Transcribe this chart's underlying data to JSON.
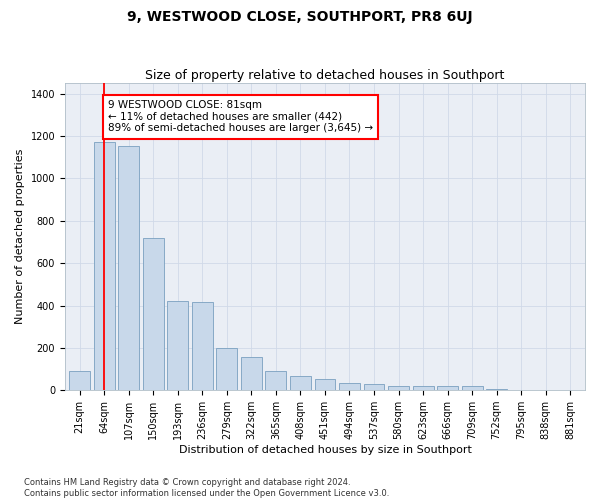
{
  "title": "9, WESTWOOD CLOSE, SOUTHPORT, PR8 6UJ",
  "subtitle": "Size of property relative to detached houses in Southport",
  "xlabel": "Distribution of detached houses by size in Southport",
  "ylabel": "Number of detached properties",
  "categories": [
    "21sqm",
    "64sqm",
    "107sqm",
    "150sqm",
    "193sqm",
    "236sqm",
    "279sqm",
    "322sqm",
    "365sqm",
    "408sqm",
    "451sqm",
    "494sqm",
    "537sqm",
    "580sqm",
    "623sqm",
    "666sqm",
    "709sqm",
    "752sqm",
    "795sqm",
    "838sqm",
    "881sqm"
  ],
  "values": [
    90,
    1170,
    1155,
    720,
    420,
    415,
    200,
    155,
    90,
    65,
    55,
    35,
    28,
    22,
    18,
    18,
    18,
    5,
    0,
    0,
    0
  ],
  "bar_color": "#c8d8ea",
  "bar_edge_color": "#7aa0c0",
  "vline_x": 1,
  "vline_color": "red",
  "annotation_text": "9 WESTWOOD CLOSE: 81sqm\n← 11% of detached houses are smaller (442)\n89% of semi-detached houses are larger (3,645) →",
  "annotation_box_color": "white",
  "annotation_box_edge": "red",
  "ylim": [
    0,
    1450
  ],
  "yticks": [
    0,
    200,
    400,
    600,
    800,
    1000,
    1200,
    1400
  ],
  "footer_text": "Contains HM Land Registry data © Crown copyright and database right 2024.\nContains public sector information licensed under the Open Government Licence v3.0.",
  "grid_color": "#d0d9e8",
  "background_color": "#eaeef5",
  "title_fontsize": 10,
  "subtitle_fontsize": 9,
  "axis_label_fontsize": 8,
  "tick_fontsize": 7,
  "footer_fontsize": 6,
  "annot_fontsize": 7.5
}
